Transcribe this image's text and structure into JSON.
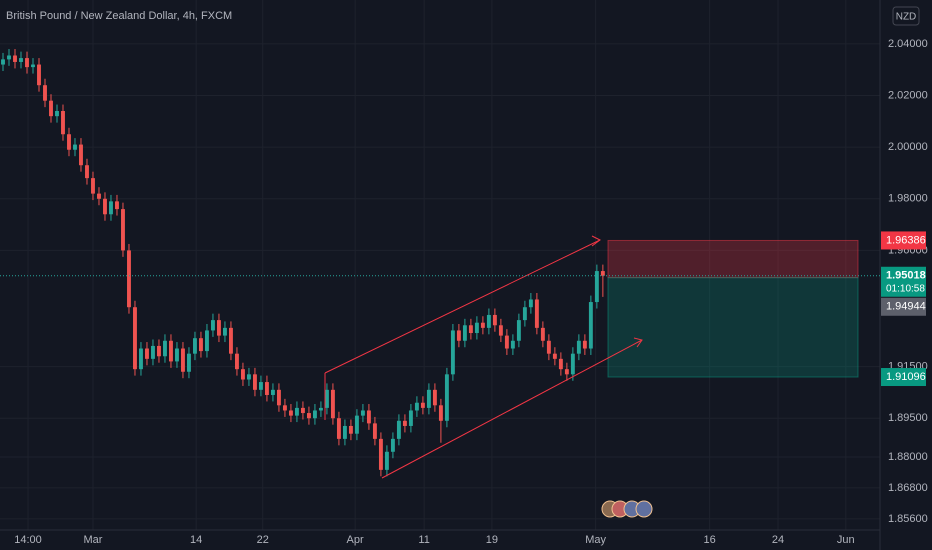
{
  "header": {
    "title": "British Pound / New Zealand Dollar, 4h, FXCM",
    "currency": "NZD"
  },
  "chart_data": {
    "type": "candlestick",
    "xlim": [
      -0.5,
      146.2
    ],
    "xticks": [
      {
        "value": 4.17,
        "label": "14:00"
      },
      {
        "value": 15,
        "label": "Mar"
      },
      {
        "value": 32.2,
        "label": "14"
      },
      {
        "value": 43.3,
        "label": "22"
      },
      {
        "value": 58.7,
        "label": "Apr"
      },
      {
        "value": 70.2,
        "label": "11"
      },
      {
        "value": 81.5,
        "label": "19"
      },
      {
        "value": 98.8,
        "label": "May"
      },
      {
        "value": 117.8,
        "label": "16"
      },
      {
        "value": 129.2,
        "label": "24"
      },
      {
        "value": 140.5,
        "label": "Jun"
      }
    ],
    "ylim": [
      1.8517,
      2.057
    ],
    "yticks": [
      {
        "value": 2.04,
        "label": "2.04000"
      },
      {
        "value": 2.02,
        "label": "2.02000"
      },
      {
        "value": 2.0,
        "label": "2.00000"
      },
      {
        "value": 1.98,
        "label": "1.98000"
      },
      {
        "value": 1.96,
        "label": "1.96000"
      },
      {
        "value": 1.915,
        "label": "1.91500"
      },
      {
        "value": 1.895,
        "label": "1.89500"
      },
      {
        "value": 1.88,
        "label": "1.88000"
      },
      {
        "value": 1.868,
        "label": "1.86800"
      },
      {
        "value": 1.856,
        "label": "1.85600"
      }
    ],
    "up_color": "#26a69a",
    "down_color": "#ef5350",
    "open": [
      2.032,
      2.034,
      2.0355,
      2.033,
      2.0345,
      2.031,
      2.032,
      2.024,
      2.018,
      2.012,
      2.014,
      2.005,
      1.999,
      2.001,
      1.993,
      1.988,
      1.982,
      1.98,
      1.974,
      1.979,
      1.976,
      1.96,
      1.938,
      1.914,
      1.922,
      1.918,
      1.923,
      1.919,
      1.925,
      1.917,
      1.922,
      1.913,
      1.92,
      1.926,
      1.921,
      1.929,
      1.933,
      1.927,
      1.93,
      1.92,
      1.914,
      1.91,
      1.912,
      1.906,
      1.909,
      1.904,
      1.906,
      1.9,
      1.898,
      1.896,
      1.899,
      1.897,
      1.895,
      1.898,
      1.899,
      1.906,
      1.895,
      1.887,
      1.892,
      1.889,
      1.896,
      1.898,
      1.893,
      1.887,
      1.875,
      1.882,
      1.887,
      1.894,
      1.892,
      1.898,
      1.901,
      1.899,
      1.906,
      1.9,
      1.894,
      1.912,
      1.929,
      1.925,
      1.931,
      1.928,
      1.932,
      1.93,
      1.935,
      1.931,
      1.927,
      1.922,
      1.925,
      1.933,
      1.938,
      1.941,
      1.93,
      1.925,
      1.92,
      1.918,
      1.914,
      1.912,
      1.92,
      1.925,
      1.922,
      1.94,
      1.952
    ],
    "high": [
      2.0365,
      2.038,
      2.038,
      2.037,
      2.037,
      2.0345,
      2.0345,
      2.0265,
      2.0205,
      2.0165,
      2.0165,
      2.0075,
      2.0035,
      2.0035,
      1.9955,
      1.9905,
      1.9845,
      1.9825,
      1.9815,
      1.9815,
      1.9785,
      1.9625,
      1.9405,
      1.9245,
      1.9245,
      1.9255,
      1.9255,
      1.9275,
      1.9275,
      1.9245,
      1.9245,
      1.9225,
      1.9285,
      1.9285,
      1.9315,
      1.9355,
      1.9355,
      1.9325,
      1.9325,
      1.9225,
      1.9165,
      1.9145,
      1.9145,
      1.9115,
      1.9115,
      1.9085,
      1.9085,
      1.9025,
      1.9005,
      1.9015,
      1.9015,
      1.8995,
      1.9005,
      1.9015,
      1.9085,
      1.9085,
      1.8975,
      1.8945,
      1.8945,
      1.8985,
      1.9005,
      1.9005,
      1.8955,
      1.8895,
      1.8845,
      1.8895,
      1.8965,
      1.8965,
      1.9005,
      1.9035,
      1.9035,
      1.9085,
      1.9085,
      1.9025,
      1.9145,
      1.9315,
      1.9315,
      1.9335,
      1.9335,
      1.9345,
      1.9345,
      1.9375,
      1.9375,
      1.9335,
      1.9295,
      1.9275,
      1.9355,
      1.9405,
      1.9435,
      1.9435,
      1.9325,
      1.9275,
      1.9225,
      1.9205,
      1.9165,
      1.9225,
      1.9275,
      1.9275,
      1.9425,
      1.9545,
      1.9545
    ],
    "low": [
      2.0295,
      2.0315,
      2.0305,
      2.0305,
      2.0285,
      2.0285,
      2.0215,
      2.0155,
      2.0095,
      2.0095,
      2.0025,
      1.9965,
      1.9965,
      1.9905,
      1.9855,
      1.9795,
      1.9775,
      1.9715,
      1.9715,
      1.9735,
      1.9575,
      1.9355,
      1.9115,
      1.9115,
      1.9155,
      1.9155,
      1.9165,
      1.9165,
      1.9145,
      1.9145,
      1.9105,
      1.9105,
      1.9175,
      1.9185,
      1.9185,
      1.9265,
      1.9245,
      1.9245,
      1.9175,
      1.9115,
      1.9075,
      1.9075,
      1.9035,
      1.9035,
      1.9015,
      1.9015,
      1.8975,
      1.8955,
      1.8935,
      1.8935,
      1.8945,
      1.8925,
      1.8925,
      1.8955,
      1.8965,
      1.8925,
      1.8845,
      1.8845,
      1.8865,
      1.8865,
      1.8935,
      1.8905,
      1.8845,
      1.8725,
      1.8725,
      1.8795,
      1.8845,
      1.8895,
      1.8895,
      1.8955,
      1.8965,
      1.8965,
      1.8975,
      1.8855,
      1.8915,
      1.9095,
      1.9225,
      1.9225,
      1.9255,
      1.9255,
      1.9275,
      1.9275,
      1.9285,
      1.9245,
      1.9195,
      1.9195,
      1.9225,
      1.9305,
      1.9355,
      1.9275,
      1.9225,
      1.9175,
      1.9155,
      1.9115,
      1.9095,
      1.9095,
      1.9175,
      1.9195,
      1.9195,
      1.9375,
      1.942
    ],
    "close": [
      2.034,
      2.0355,
      2.033,
      2.0345,
      2.031,
      2.032,
      2.024,
      2.018,
      2.012,
      2.014,
      2.005,
      1.999,
      2.001,
      1.993,
      1.988,
      1.982,
      1.98,
      1.974,
      1.979,
      1.976,
      1.96,
      1.938,
      1.914,
      1.922,
      1.918,
      1.923,
      1.919,
      1.925,
      1.917,
      1.922,
      1.913,
      1.92,
      1.926,
      1.921,
      1.929,
      1.933,
      1.927,
      1.93,
      1.92,
      1.914,
      1.91,
      1.912,
      1.906,
      1.909,
      1.904,
      1.906,
      1.9,
      1.898,
      1.896,
      1.899,
      1.897,
      1.895,
      1.898,
      1.899,
      1.906,
      1.895,
      1.887,
      1.892,
      1.889,
      1.896,
      1.898,
      1.893,
      1.887,
      1.875,
      1.882,
      1.887,
      1.894,
      1.892,
      1.898,
      1.901,
      1.899,
      1.906,
      1.9,
      1.894,
      1.912,
      1.929,
      1.925,
      1.931,
      1.928,
      1.932,
      1.93,
      1.935,
      1.931,
      1.927,
      1.922,
      1.925,
      1.933,
      1.938,
      1.941,
      1.93,
      1.925,
      1.92,
      1.918,
      1.914,
      1.912,
      1.92,
      1.925,
      1.922,
      1.94,
      1.952,
      1.9502
    ],
    "last_price": 1.95018,
    "countdown": "01:10:58",
    "position": {
      "stop": 1.96386,
      "entry": 1.94944,
      "target": 1.91096
    }
  }
}
